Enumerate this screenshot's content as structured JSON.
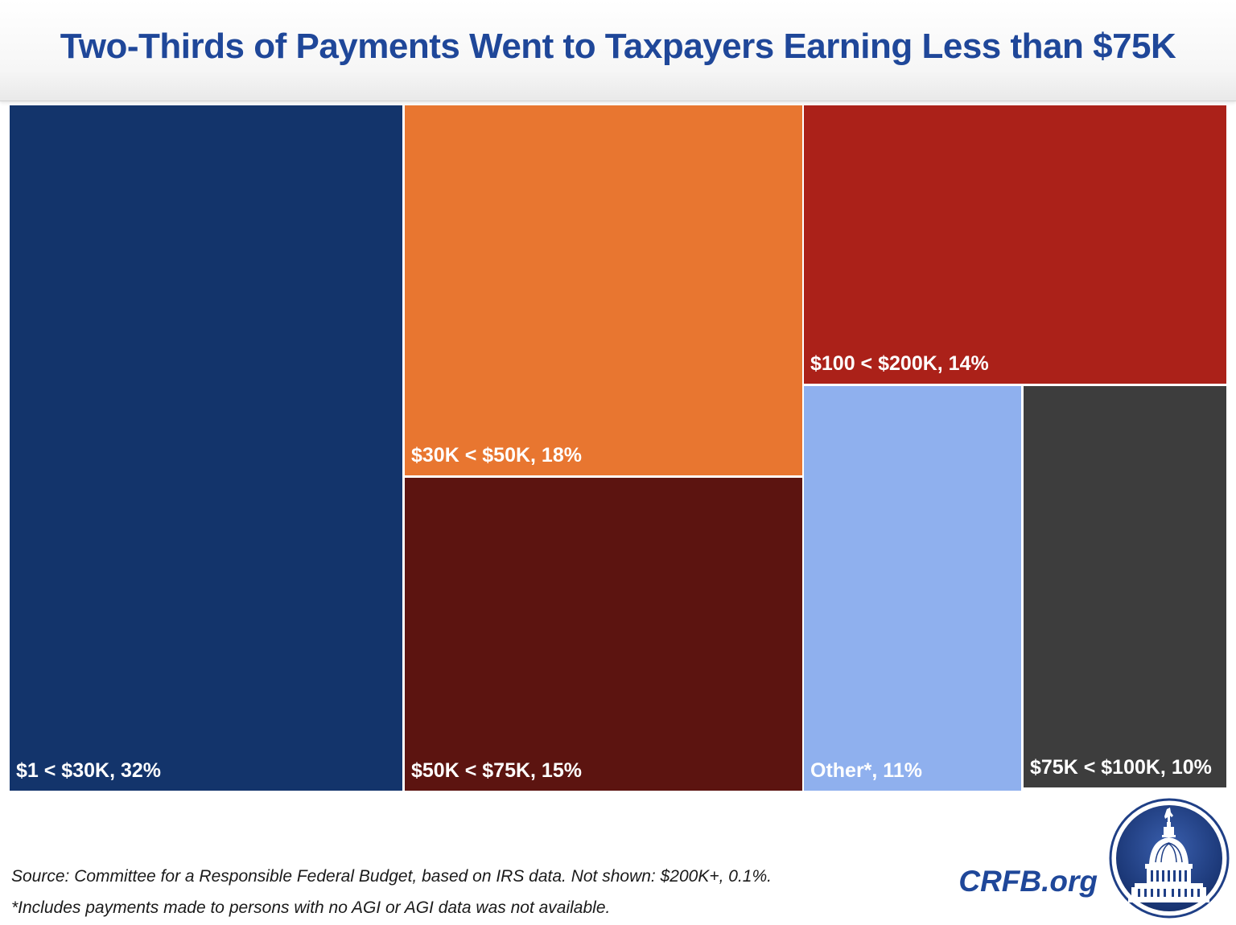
{
  "title": "Two-Thirds of Payments Went to Taxpayers Earning Less than $75K",
  "chart_data": {
    "type": "treemap",
    "title": "Two-Thirds of Payments Went to Taxpayers Earning Less than $75K",
    "unit": "percent of payments",
    "items": [
      {
        "name": "$1 < $30K",
        "value": 32,
        "label": "$1 < $30K, 32%",
        "color": "#13346b"
      },
      {
        "name": "$30K < $50K",
        "value": 18,
        "label": "$30K < $50K, 18%",
        "color": "#e87630"
      },
      {
        "name": "$50K < $75K",
        "value": 15,
        "label": "$50K < $75K, 15%",
        "color": "#5c1410"
      },
      {
        "name": "$100 < $200K",
        "value": 14,
        "label": "$100 < $200K, 14%",
        "color": "#ab2119"
      },
      {
        "name": "Other*",
        "value": 11,
        "label": "Other*, 11%",
        "color": "#8fb0ee"
      },
      {
        "name": "$75K < $100K",
        "value": 10,
        "label": "$75K < $100K, 10%",
        "color": "#3d3d3d"
      }
    ]
  },
  "footnotes": {
    "source": "Source: Committee for a Responsible Federal Budget, based on IRS data. Not shown: $200K+, 0.1%.",
    "other_note": "*Includes payments made to persons with no AGI or AGI data was not available."
  },
  "brand": {
    "site": "CRFB.org",
    "logo_icon": "capitol-dome-icon",
    "logo_color": "#1f3f86"
  }
}
